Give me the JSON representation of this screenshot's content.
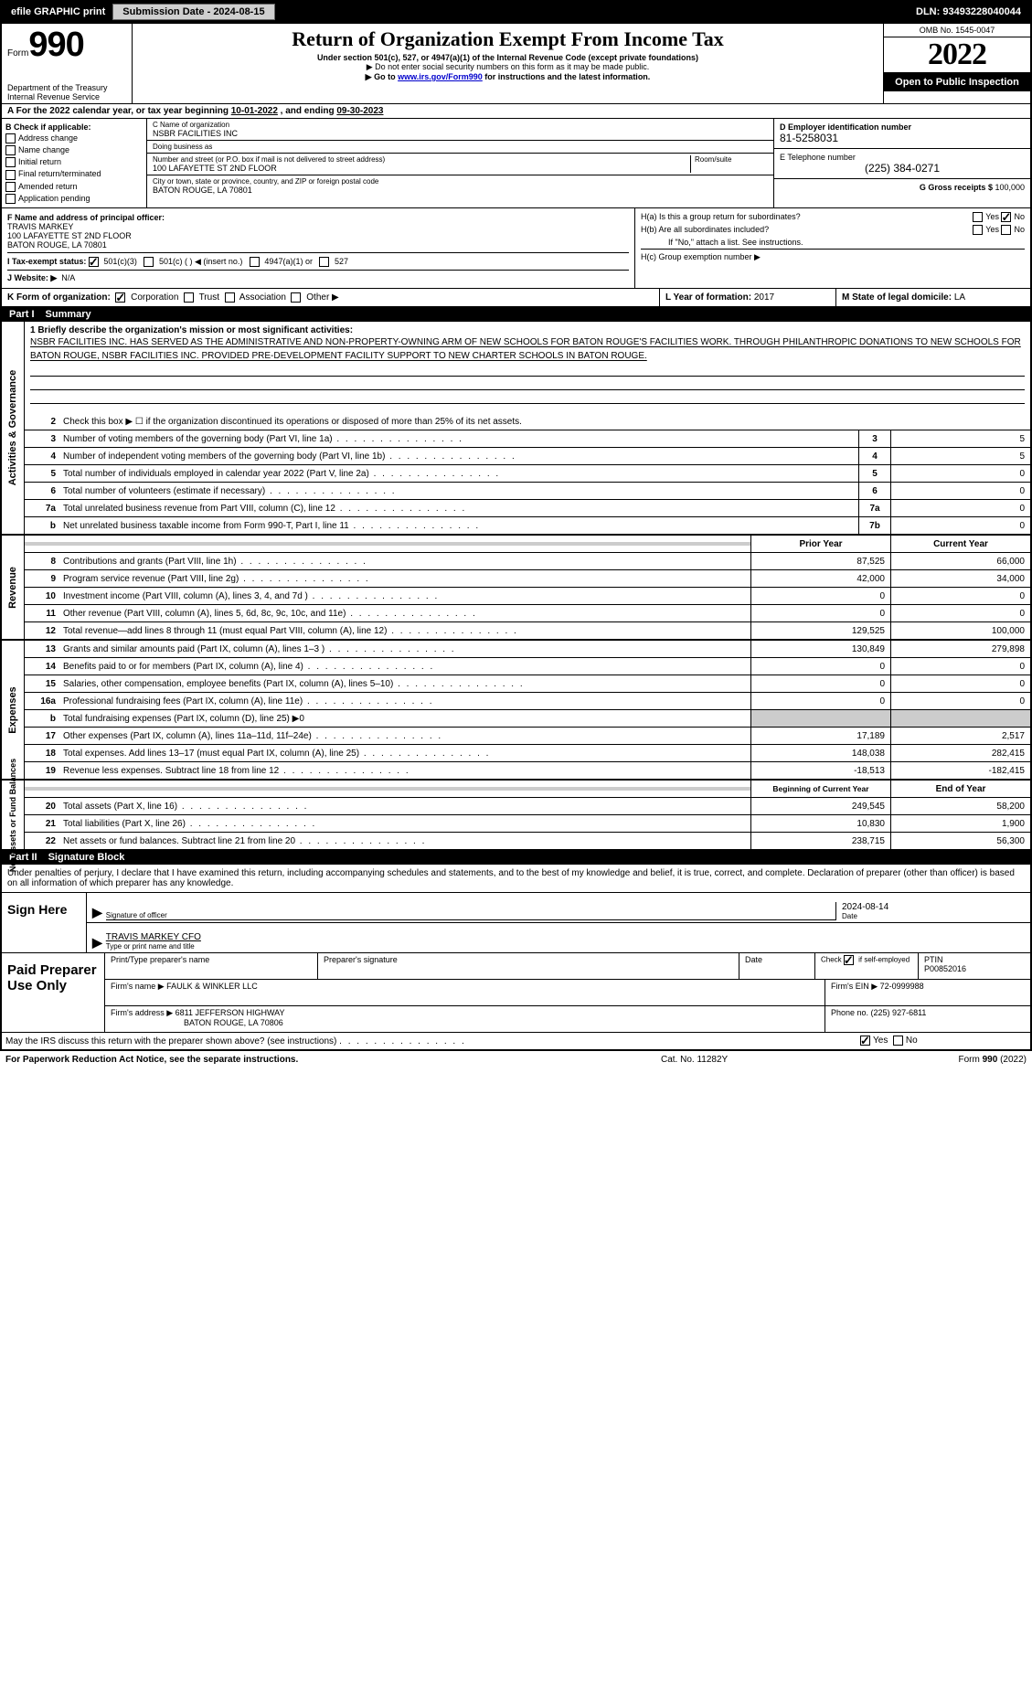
{
  "topbar": {
    "efile_label": "efile GRAPHIC print",
    "submission_btn": "Submission Date - 2024-08-15",
    "dln_label": "DLN: 93493228040044"
  },
  "header": {
    "form_word": "Form",
    "form_num": "990",
    "title": "Return of Organization Exempt From Income Tax",
    "subtitle1": "Under section 501(c), 527, or 4947(a)(1) of the Internal Revenue Code (except private foundations)",
    "subtitle2": "▶ Do not enter social security numbers on this form as it may be made public.",
    "subtitle3_pre": "▶ Go to ",
    "subtitle3_link": "www.irs.gov/Form990",
    "subtitle3_post": " for instructions and the latest information.",
    "omb": "OMB No. 1545-0047",
    "year": "2022",
    "open_inspect": "Open to Public Inspection",
    "dept1": "Department of the Treasury",
    "dept2": "Internal Revenue Service"
  },
  "period": {
    "label_a": "A For the 2022 calendar year, or tax year beginning ",
    "begin": "10-01-2022",
    "mid": " , and ending ",
    "end": "09-30-2023"
  },
  "box_b": {
    "header": "B Check if applicable:",
    "items": [
      "Address change",
      "Name change",
      "Initial return",
      "Final return/terminated",
      "Amended return",
      "Application pending"
    ]
  },
  "box_c": {
    "name_label": "C Name of organization",
    "name": "NSBR FACILITIES INC",
    "dba_label": "Doing business as",
    "dba": "",
    "addr_label": "Number and street (or P.O. box if mail is not delivered to street address)",
    "room_label": "Room/suite",
    "addr": "100 LAFAYETTE ST 2ND FLOOR",
    "city_label": "City or town, state or province, country, and ZIP or foreign postal code",
    "city": "BATON ROUGE, LA  70801"
  },
  "box_d": {
    "ein_label": "D Employer identification number",
    "ein": "81-5258031",
    "phone_label": "E Telephone number",
    "phone": "(225) 384-0271",
    "gross_label": "G Gross receipts $ ",
    "gross": "100,000"
  },
  "box_f": {
    "label": "F Name and address of principal officer:",
    "name": "TRAVIS MARKEY",
    "addr1": "100 LAFAYETTE ST 2ND FLOOR",
    "addr2": "BATON ROUGE, LA  70801"
  },
  "box_h": {
    "ha_label": "H(a)  Is this a group return for subordinates?",
    "hb_label": "H(b)  Are all subordinates included?",
    "hb_note": "If \"No,\" attach a list. See instructions.",
    "hc_label": "H(c)  Group exemption number ▶",
    "yes": "Yes",
    "no": "No"
  },
  "box_i": {
    "label": "I   Tax-exempt status:",
    "opt1": "501(c)(3)",
    "opt2": "501(c) (  ) ◀ (insert no.)",
    "opt3": "4947(a)(1) or",
    "opt4": "527"
  },
  "box_j": {
    "label": "J   Website: ▶",
    "value": "N/A"
  },
  "box_k": {
    "label": "K Form of organization:",
    "opts": [
      "Corporation",
      "Trust",
      "Association",
      "Other ▶"
    ]
  },
  "box_l": {
    "label": "L Year of formation: ",
    "value": "2017"
  },
  "box_m": {
    "label": "M State of legal domicile: ",
    "value": "LA"
  },
  "part1": {
    "header_num": "Part I",
    "header_title": "Summary",
    "side_gov": "Activities & Governance",
    "side_rev": "Revenue",
    "side_exp": "Expenses",
    "side_net": "Net Assets or Fund Balances",
    "line1_label": "1  Briefly describe the organization's mission or most significant activities:",
    "mission": "NSBR FACILITIES INC. HAS SERVED AS THE ADMINISTRATIVE AND NON-PROPERTY-OWNING ARM OF NEW SCHOOLS FOR BATON ROUGE'S FACILITIES WORK. THROUGH PHILANTHROPIC DONATIONS TO NEW SCHOOLS FOR BATON ROUGE, NSBR FACILITIES INC. PROVIDED PRE-DEVELOPMENT FACILITY SUPPORT TO NEW CHARTER SCHOOLS IN BATON ROUGE.",
    "line2": "Check this box ▶ ☐ if the organization discontinued its operations or disposed of more than 25% of its net assets.",
    "rows_gov": [
      {
        "n": "3",
        "d": "Number of voting members of the governing body (Part VI, line 1a)",
        "c": "3",
        "v": "5"
      },
      {
        "n": "4",
        "d": "Number of independent voting members of the governing body (Part VI, line 1b)",
        "c": "4",
        "v": "5"
      },
      {
        "n": "5",
        "d": "Total number of individuals employed in calendar year 2022 (Part V, line 2a)",
        "c": "5",
        "v": "0"
      },
      {
        "n": "6",
        "d": "Total number of volunteers (estimate if necessary)",
        "c": "6",
        "v": "0"
      },
      {
        "n": "7a",
        "d": "Total unrelated business revenue from Part VIII, column (C), line 12",
        "c": "7a",
        "v": "0"
      },
      {
        "n": "b",
        "d": "Net unrelated business taxable income from Form 990-T, Part I, line 11",
        "c": "7b",
        "v": "0"
      }
    ],
    "col_prior": "Prior Year",
    "col_current": "Current Year",
    "rows_rev": [
      {
        "n": "8",
        "d": "Contributions and grants (Part VIII, line 1h)",
        "p": "87,525",
        "c": "66,000"
      },
      {
        "n": "9",
        "d": "Program service revenue (Part VIII, line 2g)",
        "p": "42,000",
        "c": "34,000"
      },
      {
        "n": "10",
        "d": "Investment income (Part VIII, column (A), lines 3, 4, and 7d )",
        "p": "0",
        "c": "0"
      },
      {
        "n": "11",
        "d": "Other revenue (Part VIII, column (A), lines 5, 6d, 8c, 9c, 10c, and 11e)",
        "p": "0",
        "c": "0"
      },
      {
        "n": "12",
        "d": "Total revenue—add lines 8 through 11 (must equal Part VIII, column (A), line 12)",
        "p": "129,525",
        "c": "100,000"
      }
    ],
    "rows_exp": [
      {
        "n": "13",
        "d": "Grants and similar amounts paid (Part IX, column (A), lines 1–3 )",
        "p": "130,849",
        "c": "279,898"
      },
      {
        "n": "14",
        "d": "Benefits paid to or for members (Part IX, column (A), line 4)",
        "p": "0",
        "c": "0"
      },
      {
        "n": "15",
        "d": "Salaries, other compensation, employee benefits (Part IX, column (A), lines 5–10)",
        "p": "0",
        "c": "0"
      },
      {
        "n": "16a",
        "d": "Professional fundraising fees (Part IX, column (A), line 11e)",
        "p": "0",
        "c": "0"
      },
      {
        "n": "b",
        "d": "Total fundraising expenses (Part IX, column (D), line 25) ▶0",
        "p": "",
        "c": "",
        "shaded": true
      },
      {
        "n": "17",
        "d": "Other expenses (Part IX, column (A), lines 11a–11d, 11f–24e)",
        "p": "17,189",
        "c": "2,517"
      },
      {
        "n": "18",
        "d": "Total expenses. Add lines 13–17 (must equal Part IX, column (A), line 25)",
        "p": "148,038",
        "c": "282,415"
      },
      {
        "n": "19",
        "d": "Revenue less expenses. Subtract line 18 from line 12",
        "p": "-18,513",
        "c": "-182,415"
      }
    ],
    "col_begin": "Beginning of Current Year",
    "col_end": "End of Year",
    "rows_net": [
      {
        "n": "20",
        "d": "Total assets (Part X, line 16)",
        "p": "249,545",
        "c": "58,200"
      },
      {
        "n": "21",
        "d": "Total liabilities (Part X, line 26)",
        "p": "10,830",
        "c": "1,900"
      },
      {
        "n": "22",
        "d": "Net assets or fund balances. Subtract line 21 from line 20",
        "p": "238,715",
        "c": "56,300"
      }
    ]
  },
  "part2": {
    "header_num": "Part II",
    "header_title": "Signature Block",
    "declare": "Under penalties of perjury, I declare that I have examined this return, including accompanying schedules and statements, and to the best of my knowledge and belief, it is true, correct, and complete. Declaration of preparer (other than officer) is based on all information of which preparer has any knowledge.",
    "sign_label": "Sign Here",
    "sig_officer_label": "Signature of officer",
    "date_label": "Date",
    "date_val": "2024-08-14",
    "officer_name": "TRAVIS MARKEY CFO",
    "type_label": "Type or print name and title",
    "paid_label": "Paid Preparer Use Only",
    "prep_name_label": "Print/Type preparer's name",
    "prep_sig_label": "Preparer's signature",
    "prep_date_label": "Date",
    "check_if_label": "Check ☑ if self-employed",
    "ptin_label": "PTIN",
    "ptin": "P00852016",
    "firm_name_label": "Firm's name    ▶ ",
    "firm_name": "FAULK & WINKLER LLC",
    "firm_ein_label": "Firm's EIN ▶ ",
    "firm_ein": "72-0999988",
    "firm_addr_label": "Firm's address ▶ ",
    "firm_addr1": "6811 JEFFERSON HIGHWAY",
    "firm_addr2": "BATON ROUGE, LA  70806",
    "firm_phone_label": "Phone no. ",
    "firm_phone": "(225) 927-6811",
    "may_irs": "May the IRS discuss this return with the preparer shown above? (see instructions)"
  },
  "footer": {
    "left": "For Paperwork Reduction Act Notice, see the separate instructions.",
    "mid": "Cat. No. 11282Y",
    "right_form": "Form ",
    "right_num": "990",
    "right_year": " (2022)"
  }
}
